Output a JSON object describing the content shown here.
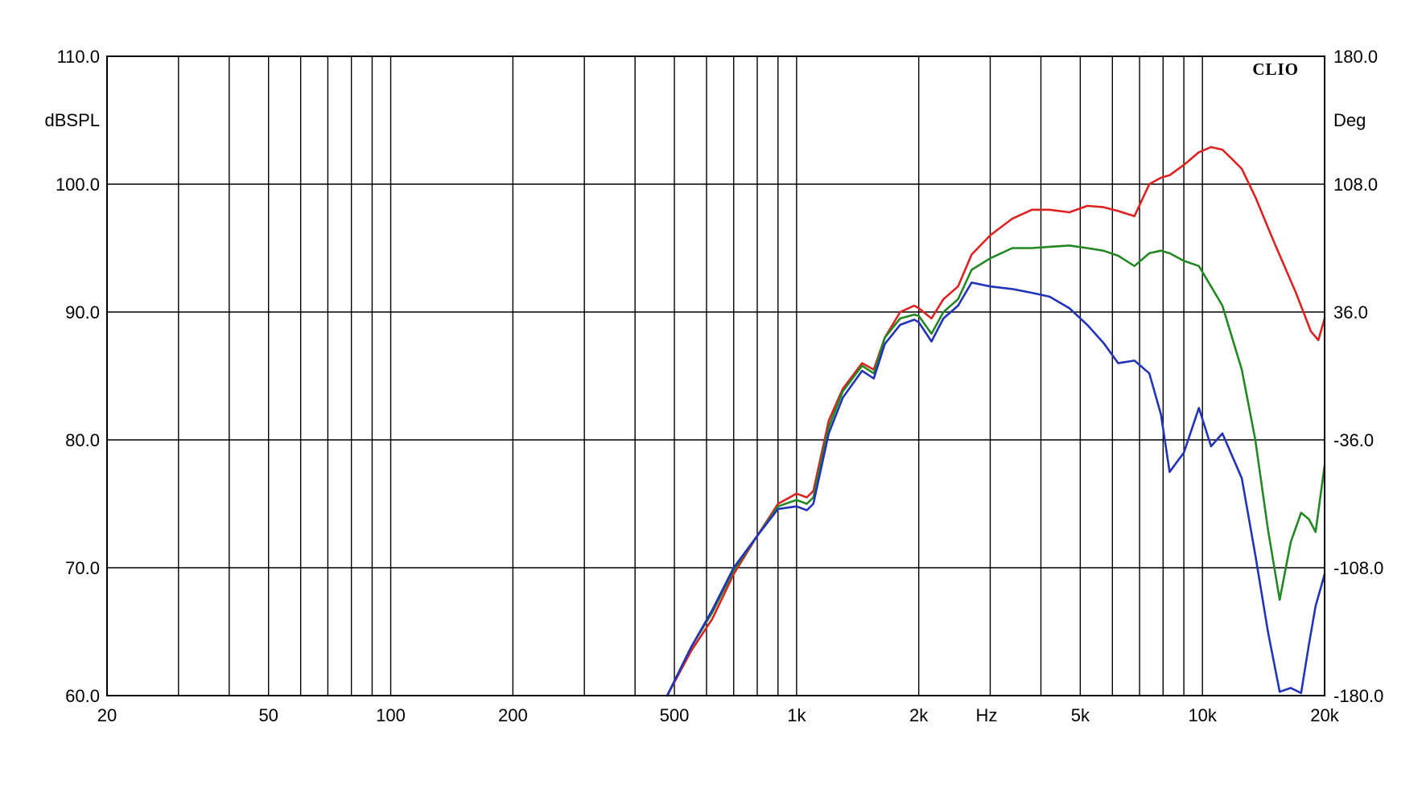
{
  "chart_data": {
    "type": "line",
    "brand": "CLIO",
    "xlabel": "Hz",
    "ylabel_left": "dBSPL",
    "ylabel_right": "Deg",
    "x_scale": "log",
    "xlim": [
      20,
      20000
    ],
    "ylim": [
      60,
      110
    ],
    "ylim_right": [
      -180,
      180
    ],
    "grid": true,
    "x_tick_labels": [
      {
        "value": 20,
        "label": "20"
      },
      {
        "value": 50,
        "label": "50"
      },
      {
        "value": 100,
        "label": "100"
      },
      {
        "value": 200,
        "label": "200"
      },
      {
        "value": 500,
        "label": "500"
      },
      {
        "value": 1000,
        "label": "1k"
      },
      {
        "value": 2000,
        "label": "2k"
      },
      {
        "value": 5000,
        "label": "5k"
      },
      {
        "value": 10000,
        "label": "10k"
      },
      {
        "value": 20000,
        "label": "20k"
      }
    ],
    "x_grid": [
      30,
      40,
      50,
      60,
      70,
      80,
      90,
      100,
      200,
      300,
      400,
      500,
      600,
      700,
      800,
      900,
      1000,
      2000,
      3000,
      4000,
      5000,
      6000,
      7000,
      8000,
      9000,
      10000
    ],
    "y_ticks_left": [
      {
        "value": 60,
        "label": "60.0"
      },
      {
        "value": 70,
        "label": "70.0"
      },
      {
        "value": 80,
        "label": "80.0"
      },
      {
        "value": 90,
        "label": "90.0"
      },
      {
        "value": 100,
        "label": "100.0"
      },
      {
        "value": 110,
        "label": "110.0"
      }
    ],
    "y_ticks_right": [
      {
        "value": -180,
        "label": "-180.0"
      },
      {
        "value": -108,
        "label": "-108.0"
      },
      {
        "value": -36,
        "label": "-36.0"
      },
      {
        "value": 36,
        "label": "36.0"
      },
      {
        "value": 108,
        "label": "108.0"
      },
      {
        "value": 180,
        "label": "180.0"
      }
    ],
    "series": [
      {
        "color": "#dd2222",
        "x": [
          480,
          550,
          620,
          700,
          800,
          900,
          1000,
          1060,
          1100,
          1200,
          1300,
          1450,
          1550,
          1650,
          1800,
          1950,
          2000,
          2150,
          2300,
          2500,
          2700,
          3000,
          3400,
          3800,
          4200,
          4700,
          5200,
          5700,
          6200,
          6800,
          7400,
          7900,
          8300,
          9000,
          9800,
          10500,
          11200,
          11800,
          12500,
          13500,
          15000,
          17000,
          18500,
          19300,
          20000
        ],
        "y": [
          60,
          63.5,
          66,
          69.5,
          72.5,
          75,
          75.8,
          75.5,
          76,
          81.5,
          84,
          86,
          85.5,
          88,
          90,
          90.5,
          90.3,
          89.5,
          91,
          92,
          94.5,
          96,
          97.3,
          98,
          98,
          97.8,
          98.3,
          98.2,
          97.9,
          97.5,
          100,
          100.5,
          100.7,
          101.5,
          102.5,
          102.9,
          102.7,
          102,
          101.2,
          99,
          95.5,
          91.5,
          88.5,
          87.8,
          89.5
        ]
      },
      {
        "color": "#228822",
        "x": [
          480,
          550,
          620,
          700,
          800,
          900,
          1000,
          1060,
          1100,
          1200,
          1300,
          1450,
          1550,
          1650,
          1800,
          1950,
          2000,
          2150,
          2300,
          2500,
          2700,
          3000,
          3400,
          3800,
          4200,
          4700,
          5200,
          5700,
          6200,
          6800,
          7400,
          7900,
          8300,
          9000,
          9800,
          10500,
          11200,
          12500,
          13500,
          14500,
          15500,
          16500,
          17500,
          18300,
          19000,
          20000
        ],
        "y": [
          60,
          63.8,
          66.5,
          69.8,
          72.5,
          74.8,
          75.3,
          75,
          75.5,
          81,
          83.8,
          85.8,
          85.2,
          88,
          89.5,
          89.8,
          89.7,
          88.3,
          90,
          91,
          93.3,
          94.2,
          95,
          95,
          95.1,
          95.2,
          95,
          94.8,
          94.4,
          93.6,
          94.6,
          94.8,
          94.6,
          94,
          93.6,
          92,
          90.5,
          85.5,
          80,
          73,
          67.5,
          72,
          74.3,
          73.8,
          72.8,
          78
        ]
      },
      {
        "color": "#2233bb",
        "x": [
          480,
          550,
          620,
          700,
          800,
          900,
          1000,
          1060,
          1100,
          1200,
          1300,
          1450,
          1550,
          1650,
          1800,
          1950,
          2000,
          2150,
          2300,
          2500,
          2700,
          3000,
          3400,
          3800,
          4200,
          4700,
          5200,
          5700,
          6200,
          6800,
          7400,
          7900,
          8300,
          9000,
          9800,
          10500,
          11200,
          12500,
          13500,
          14500,
          15500,
          16500,
          17500,
          18300,
          19000,
          20000
        ],
        "y": [
          60,
          63.8,
          66.7,
          70,
          72.5,
          74.6,
          74.8,
          74.5,
          75,
          80.5,
          83.3,
          85.4,
          84.8,
          87.5,
          89,
          89.4,
          89.2,
          87.7,
          89.5,
          90.5,
          92.3,
          92,
          91.8,
          91.5,
          91.2,
          90.3,
          89,
          87.6,
          86,
          86.2,
          85.2,
          82,
          77.5,
          79,
          82.5,
          79.5,
          80.5,
          77,
          71,
          65,
          60.3,
          60.6,
          60.2,
          64,
          67,
          69.5
        ]
      }
    ]
  }
}
